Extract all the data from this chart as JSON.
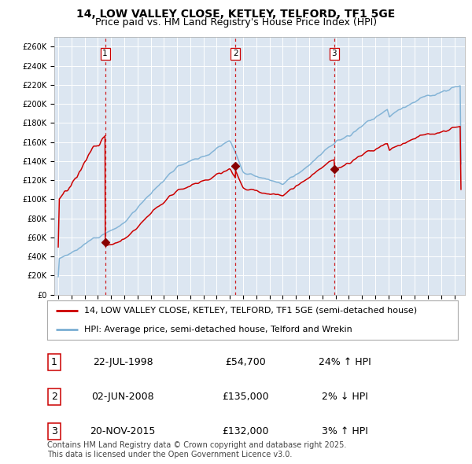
{
  "title1": "14, LOW VALLEY CLOSE, KETLEY, TELFORD, TF1 5GE",
  "title2": "Price paid vs. HM Land Registry's House Price Index (HPI)",
  "ylim": [
    0,
    270000
  ],
  "yticks": [
    0,
    20000,
    40000,
    60000,
    80000,
    100000,
    120000,
    140000,
    160000,
    180000,
    200000,
    220000,
    240000,
    260000
  ],
  "xlim_start": 1994.7,
  "xlim_end": 2025.8,
  "background_color": "#dce6f1",
  "grid_color": "#ffffff",
  "sale_color": "#cc0000",
  "hpi_color": "#7bafd4",
  "dashed_line_color": "#cc0000",
  "sale_marker_color": "#880000",
  "t1": 1998.55,
  "t2": 2008.42,
  "t3": 2015.9,
  "p1": 54700,
  "p2": 135000,
  "p3": 132000,
  "legend_line1": "14, LOW VALLEY CLOSE, KETLEY, TELFORD, TF1 5GE (semi-detached house)",
  "legend_line2": "HPI: Average price, semi-detached house, Telford and Wrekin",
  "table_rows": [
    {
      "num": "1",
      "date": "22-JUL-1998",
      "price": "£54,700",
      "hpi": "24% ↑ HPI"
    },
    {
      "num": "2",
      "date": "02-JUN-2008",
      "price": "£135,000",
      "hpi": "2% ↓ HPI"
    },
    {
      "num": "3",
      "date": "20-NOV-2015",
      "price": "£132,000",
      "hpi": "3% ↑ HPI"
    }
  ],
  "footnote": "Contains HM Land Registry data © Crown copyright and database right 2025.\nThis data is licensed under the Open Government Licence v3.0.",
  "title_fontsize": 10,
  "subtitle_fontsize": 9,
  "tick_fontsize": 7,
  "legend_fontsize": 8,
  "table_fontsize": 9
}
